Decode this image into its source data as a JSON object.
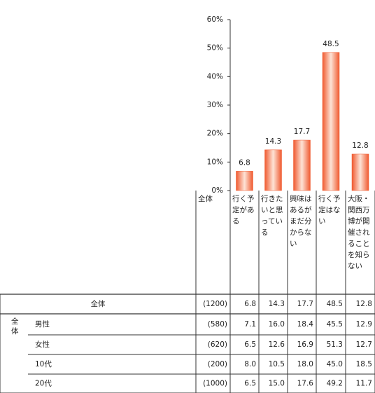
{
  "chart_data": {
    "type": "bar",
    "categories": [
      "行く予定がある",
      "行きたいと思っている",
      "興味はあるがまだ分からない",
      "行く予定はない",
      "大阪・関西万博が開催されることを知らない"
    ],
    "values": [
      6.8,
      14.3,
      17.7,
      48.5,
      12.8
    ],
    "color": "#f05a30",
    "ylim": [
      0,
      60
    ],
    "yticks": [
      {
        "value": 0,
        "label": "0%"
      },
      {
        "value": 10,
        "label": "10%"
      },
      {
        "value": 20,
        "label": "20%"
      },
      {
        "value": 30,
        "label": "30%"
      },
      {
        "value": 40,
        "label": "40%"
      },
      {
        "value": 50,
        "label": "50%"
      },
      {
        "value": 60,
        "label": "60%"
      }
    ]
  },
  "table": {
    "total_header": "全体",
    "group_label": "全体",
    "rows": [
      {
        "label": "全体",
        "n": "(1200)"
      },
      {
        "label": "男性",
        "n": "(580)",
        "values": [
          "7.1",
          "16.0",
          "18.4",
          "45.5",
          "12.9"
        ]
      },
      {
        "label": "女性",
        "n": "(620)",
        "values": [
          "6.5",
          "12.6",
          "16.9",
          "51.3",
          "12.7"
        ]
      },
      {
        "label": "10代",
        "n": "(200)",
        "values": [
          "8.0",
          "10.5",
          "18.0",
          "45.0",
          "18.5"
        ]
      },
      {
        "label": "20代",
        "n": "(1000)",
        "values": [
          "6.5",
          "15.0",
          "17.6",
          "49.2",
          "11.7"
        ]
      }
    ]
  }
}
